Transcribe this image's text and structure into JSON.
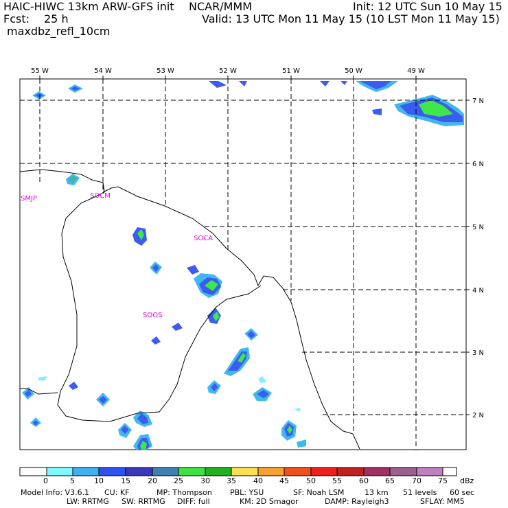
{
  "header": {
    "model": "HAIC-HIWC 13km ARW-GFS init",
    "center": "NCAR/MMM",
    "init": "Init: 12 UTC Sun 10 May 15",
    "fcst_label": "Fcst:",
    "fcst_value": "25 h",
    "valid": "Valid: 13 UTC Mon 11 May 15 (10 LST Mon 11 May 15)",
    "field": "maxdbz_refl_10cm"
  },
  "map": {
    "lon_labels": [
      "55 W",
      "54 W",
      "53 W",
      "52 W",
      "51 W",
      "50 W",
      "49 W"
    ],
    "lat_labels": [
      "7 N",
      "6 N",
      "5 N",
      "4 N",
      "3 N",
      "2 N"
    ],
    "stations": [
      "SMJP",
      "SOCM",
      "SOCA",
      "SOOS"
    ],
    "colors": {
      "station": "#e000e0",
      "refl_5": "#7ff0ff",
      "refl_10": "#3fb8f0",
      "refl_15": "#3c5cf0",
      "refl_20": "#3a4fc8",
      "refl_25": "#3eb8a0",
      "refl_30": "#3ee84a"
    }
  },
  "legend": {
    "unit": "dBz",
    "levels": [
      "0",
      "5",
      "10",
      "15",
      "20",
      "25",
      "30",
      "35",
      "40",
      "45",
      "50",
      "55",
      "60",
      "65",
      "70",
      "75"
    ],
    "colors": [
      "#ffffff",
      "#80f8ff",
      "#40b0f0",
      "#3050f0",
      "#3838b8",
      "#4080b0",
      "#40e040",
      "#20b020",
      "#f8e050",
      "#f8a030",
      "#f05020",
      "#f02020",
      "#c02020",
      "#a03060",
      "#9a6090",
      "#c080c0"
    ]
  },
  "footer": {
    "line1": {
      "model_info": "Model Info: V3.6.1",
      "cu": "CU: KF",
      "mp": "MP: Thompson",
      "pbl": "PBL: YSU",
      "sf": "SF: Noah LSM",
      "res": "13 km",
      "levels": "51 levels",
      "dt": "60 sec"
    },
    "line2": {
      "lw": "LW: RRTMG",
      "sw": "SW: RRTMG",
      "diff": "DIFF: full",
      "km": "KM: 2D Smagor",
      "damp": "DAMP: Rayleigh3",
      "sflay": "SFLAY: MM5"
    }
  }
}
